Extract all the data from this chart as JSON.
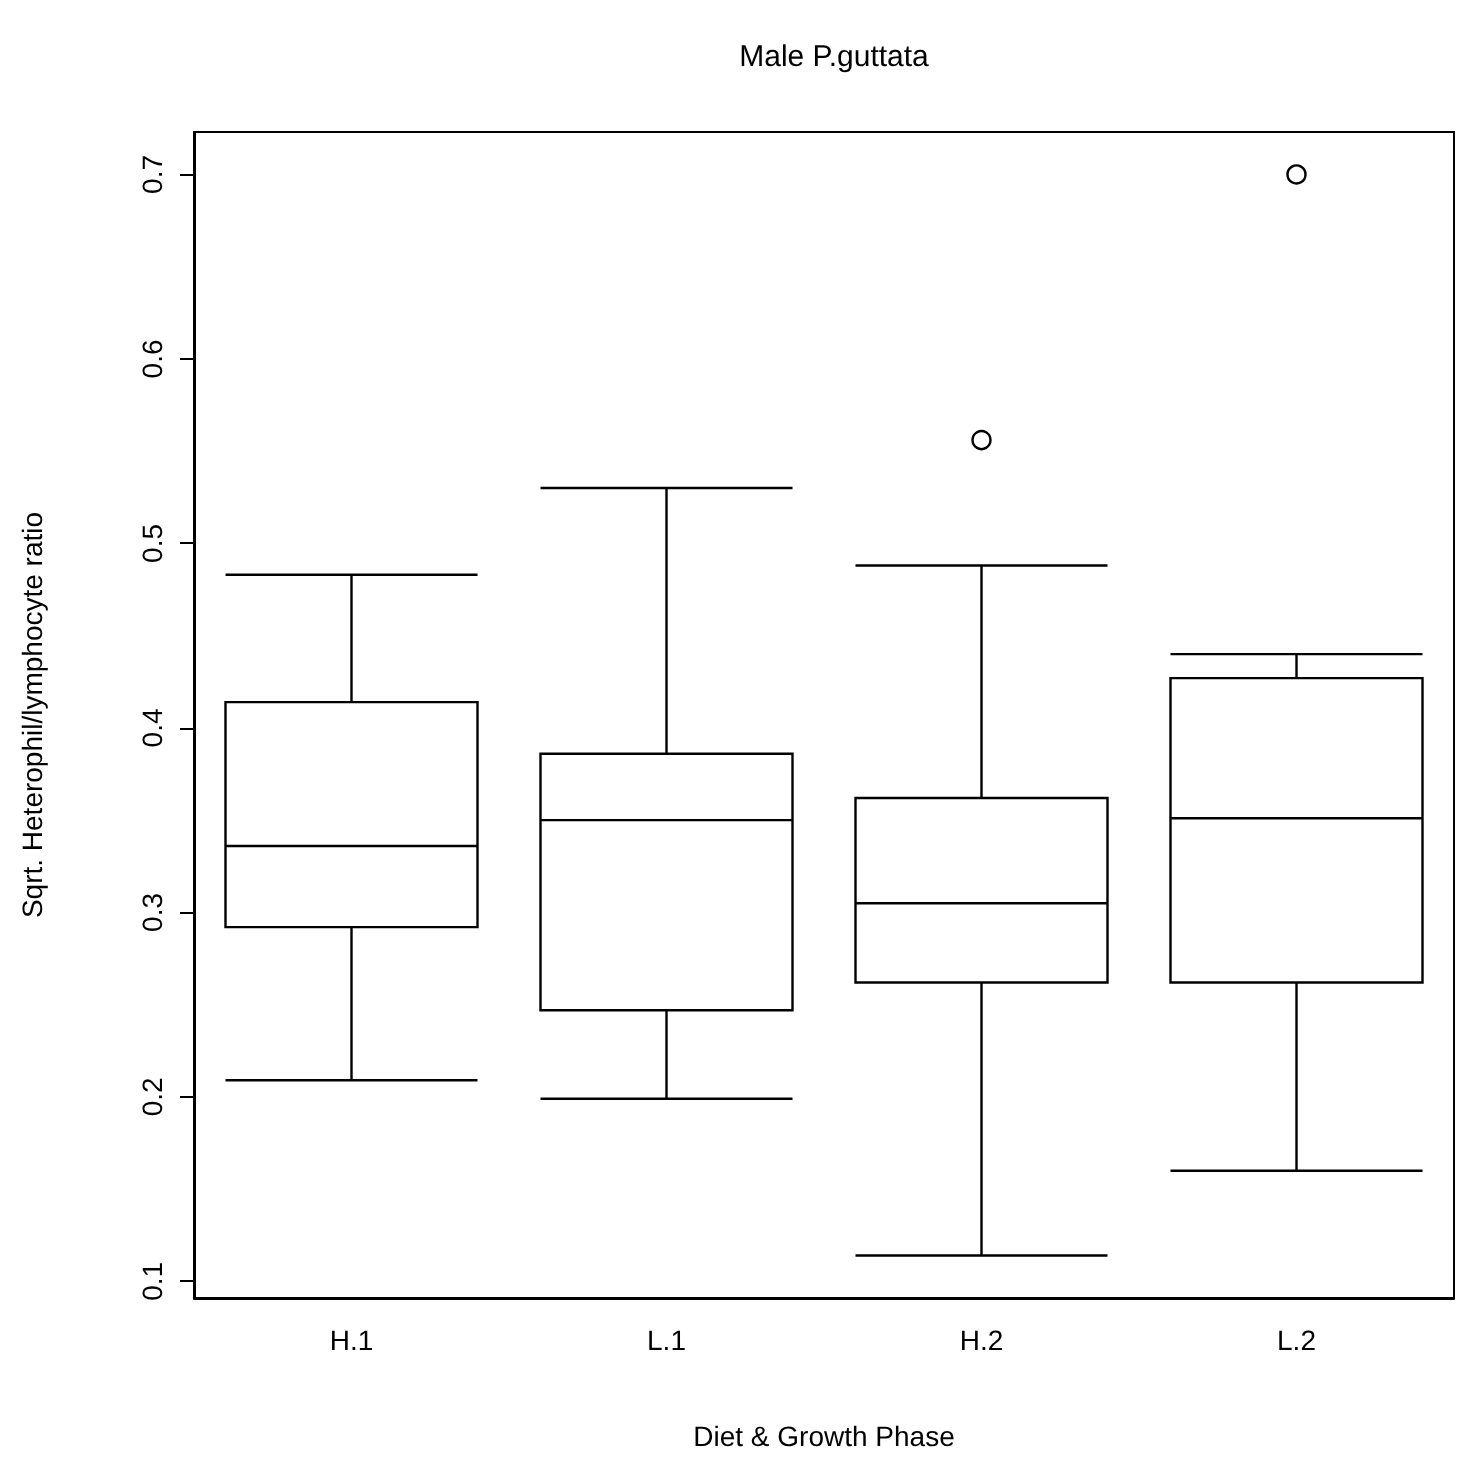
{
  "chart_data": {
    "type": "box",
    "title": "Male P.guttata",
    "xlabel": "Diet & Growth Phase",
    "ylabel": "Sqrt. Heterophil/lymphocyte ratio",
    "categories": [
      "H.1",
      "L.1",
      "H.2",
      "L.2"
    ],
    "boxes": [
      {
        "low": 0.209,
        "q1": 0.292,
        "median": 0.336,
        "q3": 0.414,
        "high": 0.483
      },
      {
        "low": 0.199,
        "q1": 0.247,
        "median": 0.35,
        "q3": 0.386,
        "high": 0.53
      },
      {
        "low": 0.114,
        "q1": 0.262,
        "median": 0.305,
        "q3": 0.362,
        "high": 0.488,
        "outliers": [
          0.556
        ]
      },
      {
        "low": 0.16,
        "q1": 0.262,
        "median": 0.351,
        "q3": 0.427,
        "high": 0.44,
        "outliers": [
          0.7
        ]
      }
    ],
    "ylim": [
      0.091,
      0.723
    ],
    "yticks": [
      0.1,
      0.2,
      0.3,
      0.4,
      0.5,
      0.6,
      0.7
    ],
    "grid": false
  }
}
